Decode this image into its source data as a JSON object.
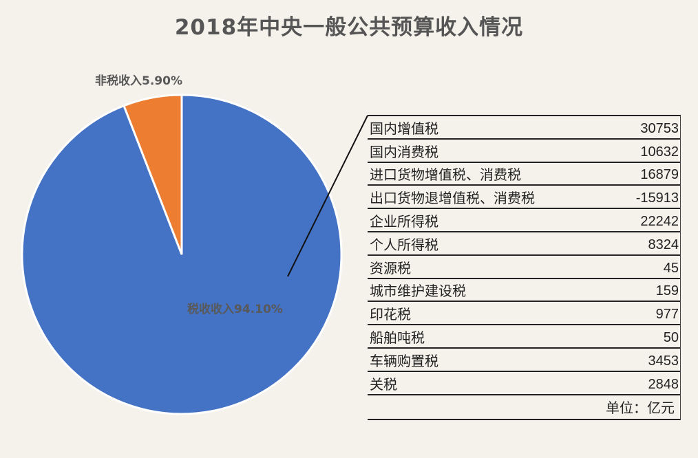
{
  "chart_data": [
    {
      "type": "pie",
      "title": "2018年中央一般公共预算收入情况",
      "slices": [
        {
          "label": "税收收入94.10%",
          "value": 94.1,
          "color": "#4472c4"
        },
        {
          "label": "非税收入5.90%",
          "value": 5.9,
          "color": "#ed7d31"
        }
      ]
    },
    {
      "type": "table",
      "rows": [
        {
          "name": "国内增值税",
          "value": "30753"
        },
        {
          "name": "国内消费税",
          "value": "10632"
        },
        {
          "name": "进口货物增值税、消费税",
          "value": "16879"
        },
        {
          "name": "出口货物退增值税、消费税",
          "value": "-15913"
        },
        {
          "name": "企业所得税",
          "value": "22242"
        },
        {
          "name": "个人所得税",
          "value": "8324"
        },
        {
          "name": "资源税",
          "value": "45"
        },
        {
          "name": "城市维护建设税",
          "value": "159"
        },
        {
          "name": "印花税",
          "value": "977"
        },
        {
          "name": "船舶吨税",
          "value": "50"
        },
        {
          "name": "车辆购置税",
          "value": "3453"
        },
        {
          "name": "关税",
          "value": "2848"
        }
      ],
      "unit": "单位：亿元"
    }
  ]
}
